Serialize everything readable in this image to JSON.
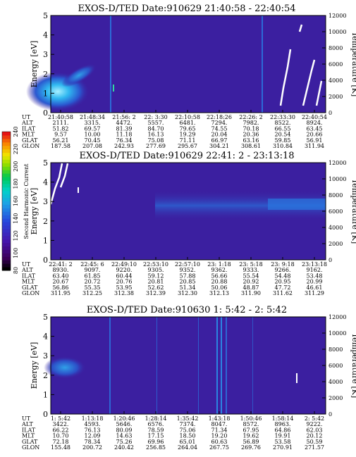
{
  "panels": [
    {
      "title": "EXOS-D/TED   Date:910629  21:40:58 - 22:40:54",
      "rows": [
        {
          "label": "UT",
          "values": [
            "21:40:58",
            "21:48:34",
            "21:56: 2",
            "22: 3:30",
            "22:10:58",
            "22:18:26",
            "22:26: 2",
            "22:33:30",
            "22:40:54"
          ]
        },
        {
          "label": "ALT",
          "values": [
            "2111.",
            "3315.",
            "4472.",
            "5557.",
            "6481.",
            "7294.",
            "7982.",
            "8522.",
            "8924."
          ]
        },
        {
          "label": "ILAT",
          "values": [
            "51.82",
            "69.57",
            "81.39",
            "84.70",
            "79.65",
            "74.55",
            "70.18",
            "66.55",
            "63.45"
          ]
        },
        {
          "label": "MLT",
          "values": [
            "9.57",
            "10.00",
            "11.18",
            "16.13",
            "19.29",
            "20.04",
            "20.36",
            "20.54",
            "20.66"
          ]
        },
        {
          "label": "GLAT",
          "values": [
            "56.21",
            "70.45",
            "76.34",
            "75.08",
            "71.11",
            "66.97",
            "63.16",
            "59.85",
            "56.91"
          ]
        },
        {
          "label": "GLON",
          "values": [
            "187.58",
            "207.08",
            "242.93",
            "277.69",
            "295.67",
            "304.21",
            "308.61",
            "310.84",
            "311.94"
          ]
        }
      ]
    },
    {
      "title": "EXOS-D/TED   Date:910629  22:41: 2 - 23:13:18",
      "rows": [
        {
          "label": "UT",
          "values": [
            "22:41: 2",
            "22:45: 6",
            "22:49:10",
            "22:53:10",
            "22:57:10",
            "23: 1:18",
            "23: 5:18",
            "23: 9:18",
            "23:13:18"
          ]
        },
        {
          "label": "ALT",
          "values": [
            "8930.",
            "9097.",
            "9220.",
            "9305.",
            "9352.",
            "9362.",
            "9333.",
            "9266.",
            "9162."
          ]
        },
        {
          "label": "ILAT",
          "values": [
            "63.40",
            "61.85",
            "60.44",
            "59.12",
            "57.88",
            "56.66",
            "55.54",
            "54.48",
            "53.48"
          ]
        },
        {
          "label": "MLT",
          "values": [
            "20.67",
            "20.72",
            "20.76",
            "20.81",
            "20.85",
            "20.88",
            "20.92",
            "20.95",
            "20.99"
          ]
        },
        {
          "label": "GLAT",
          "values": [
            "56.86",
            "55.35",
            "53.95",
            "52.62",
            "51.34",
            "50.06",
            "48.87",
            "47.72",
            "46.61"
          ]
        },
        {
          "label": "GLON",
          "values": [
            "311.95",
            "312.25",
            "312.38",
            "312.39",
            "312.30",
            "312.13",
            "311.90",
            "311.62",
            "311.29"
          ]
        }
      ]
    },
    {
      "title": "EXOS-D/TED   Date:910630  1: 5:42 - 2: 5:42",
      "rows": [
        {
          "label": "UT",
          "values": [
            "1: 5:42",
            "1:13:18",
            "1:20:46",
            "1:28:14",
            "1:35:42",
            "1:43:18",
            "1:50:46",
            "1:58:14",
            "2: 5:42"
          ]
        },
        {
          "label": "ALT",
          "values": [
            "3422.",
            "4593.",
            "5646.",
            "6576.",
            "7374.",
            "8047.",
            "8572.",
            "8963.",
            "9222."
          ]
        },
        {
          "label": "ILAT",
          "values": [
            "66.22",
            "76.13",
            "80.09",
            "78.59",
            "75.06",
            "71.34",
            "67.95",
            "64.86",
            "62.03"
          ]
        },
        {
          "label": "MLT",
          "values": [
            "10.70",
            "12.09",
            "14.63",
            "17.15",
            "18.50",
            "19.20",
            "19.62",
            "19.91",
            "20.12"
          ]
        },
        {
          "label": "GLAT",
          "values": [
            "72.18",
            "78.34",
            "75.26",
            "69.96",
            "65.01",
            "60.63",
            "56.89",
            "53.58",
            "50.59"
          ]
        },
        {
          "label": "GLON",
          "values": [
            "155.48",
            "200.72",
            "240.42",
            "256.85",
            "264.04",
            "267.75",
            "269.76",
            "270.91",
            "271.57"
          ]
        }
      ]
    }
  ],
  "colorbar": {
    "label": "Second Harmonic Current",
    "ticks": [
      "80",
      "100",
      "120",
      "140",
      "160",
      "180",
      "200",
      "220",
      "240"
    ]
  },
  "chart_data": {
    "type": "heatmap",
    "xlabel": "",
    "ylabel": "Energy [eV]",
    "ylabel_right": "Temperature [K]",
    "ylim": [
      0,
      5
    ],
    "yticks": [
      0,
      1,
      2,
      3,
      4,
      5
    ],
    "ylim_right": [
      0,
      12000
    ],
    "yticks_right": [
      0,
      2000,
      4000,
      6000,
      8000,
      10000,
      12000
    ],
    "colorbar_range": [
      80,
      240
    ],
    "colors": {
      "background": "#3b1fa0",
      "low": "#000000",
      "mid": "#00c8d8",
      "high": "#e01010"
    }
  }
}
